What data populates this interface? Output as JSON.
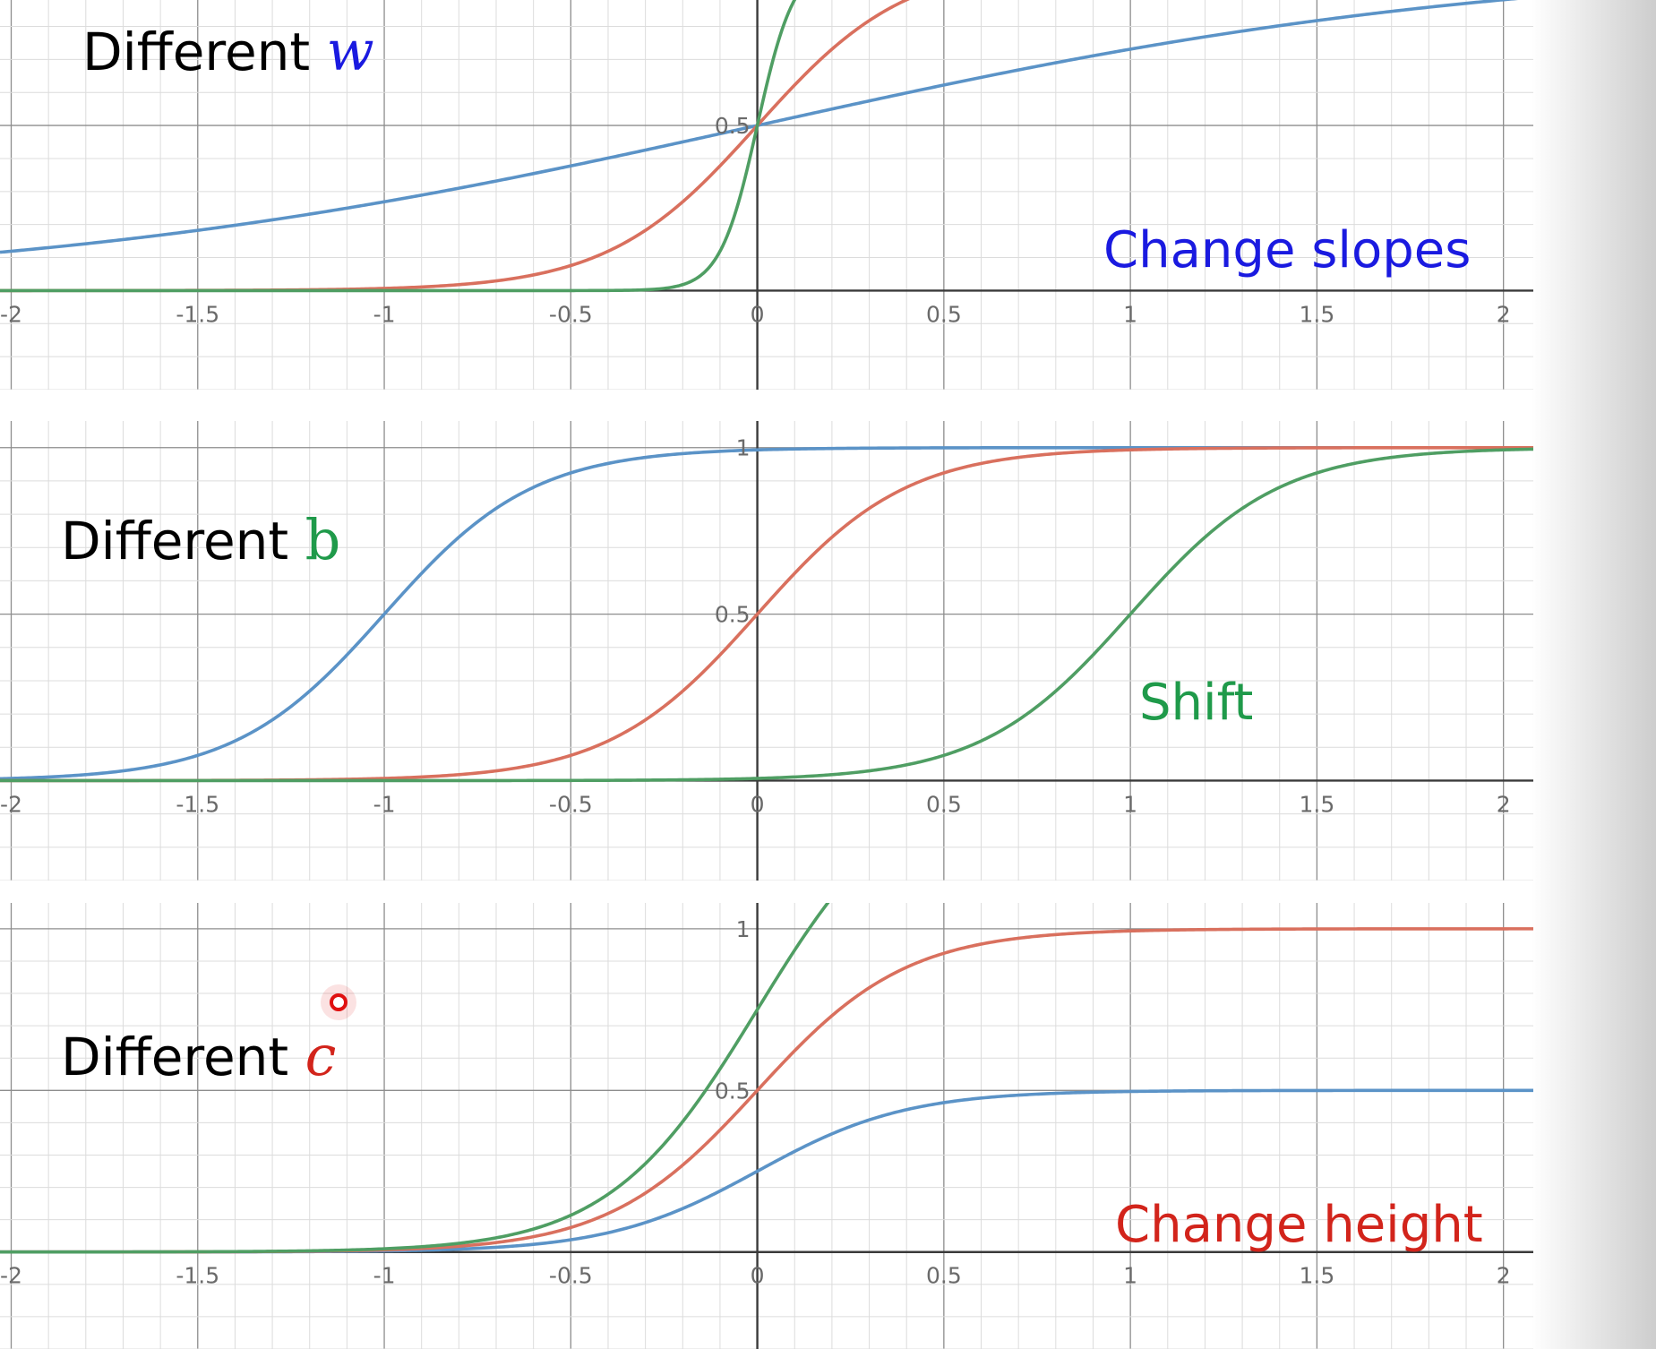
{
  "colors": {
    "blue_curve": "#5b93c7",
    "red_curve": "#d9705e",
    "green_curve": "#4f9e63",
    "annotation_blue": "#1a1ae0",
    "annotation_green": "#1f9a4a",
    "annotation_red": "#d2241b",
    "cursor": "#e01010"
  },
  "chart_data": [
    {
      "type": "line",
      "title": "Different",
      "title_variable": "w",
      "annotation": "Change slopes",
      "function": "sigmoid",
      "x_ticks": [
        "-2",
        "-1.5",
        "-1",
        "-0.5",
        "0",
        "0.5",
        "1",
        "1.5",
        "2"
      ],
      "y_tick_labels": [
        "0.5"
      ],
      "xlim": [
        -2.03,
        2.08
      ],
      "ylim": [
        -0.3,
        0.88
      ],
      "grid": true,
      "series": [
        {
          "color_key": "blue_curve",
          "w": 1,
          "b": 0,
          "c": 1
        },
        {
          "color_key": "red_curve",
          "w": 5,
          "b": 0,
          "c": 1
        },
        {
          "color_key": "green_curve",
          "w": 20,
          "b": 0,
          "c": 1
        }
      ]
    },
    {
      "type": "line",
      "title": "Different",
      "title_variable": "b",
      "annotation": "Shift",
      "function": "sigmoid",
      "x_ticks": [
        "-2",
        "-1.5",
        "-1",
        "-0.5",
        "0",
        "0.5",
        "1",
        "1.5",
        "2"
      ],
      "y_tick_labels": [
        "1",
        "0.5"
      ],
      "xlim": [
        -2.03,
        2.08
      ],
      "ylim": [
        -0.3,
        1.08
      ],
      "grid": true,
      "series": [
        {
          "color_key": "blue_curve",
          "w": 5,
          "b": 5,
          "c": 1
        },
        {
          "color_key": "red_curve",
          "w": 5,
          "b": 0,
          "c": 1
        },
        {
          "color_key": "green_curve",
          "w": 5,
          "b": -5,
          "c": 1
        }
      ]
    },
    {
      "type": "line",
      "title": "Different",
      "title_variable": "c",
      "annotation": "Change height",
      "function": "sigmoid",
      "x_ticks": [
        "-2",
        "-1.5",
        "-1",
        "-0.5",
        "0",
        "0.5",
        "1",
        "1.5",
        "2"
      ],
      "y_tick_labels": [
        "1",
        "0.5"
      ],
      "xlim": [
        -2.03,
        2.08
      ],
      "ylim": [
        -0.3,
        1.08
      ],
      "grid": true,
      "series": [
        {
          "color_key": "blue_curve",
          "w": 5,
          "b": 0,
          "c": 0.5
        },
        {
          "color_key": "red_curve",
          "w": 5,
          "b": 0,
          "c": 1
        },
        {
          "color_key": "green_curve",
          "w": 5,
          "b": 0,
          "c": 1.5
        }
      ]
    }
  ]
}
